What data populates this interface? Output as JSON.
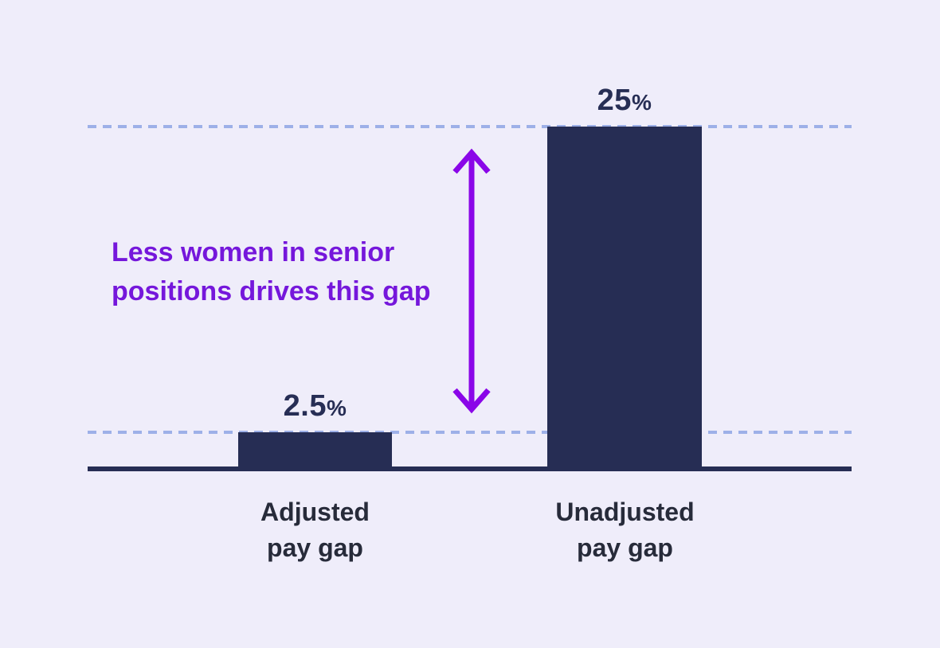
{
  "chart_data": {
    "type": "bar",
    "title": "",
    "xlabel": "",
    "ylabel": "",
    "categories": [
      "Adjusted pay gap",
      "Unadjusted pay gap"
    ],
    "values": [
      2.5,
      25
    ],
    "value_labels": [
      {
        "number": "2.5",
        "suffix": "%"
      },
      {
        "number": "25",
        "suffix": "%"
      }
    ],
    "ylim": [
      0,
      25
    ],
    "guide_lines": [
      2.5,
      25
    ],
    "grid": "dashed horizontal guide line at each bar's value, drawn behind bars",
    "legend_position": "none",
    "annotation": {
      "line1": "Less women in senior",
      "line2": "positions drives this gap"
    },
    "colors": {
      "background": "#EFEDFA",
      "bar": "#262D54",
      "value_label": "#272E55",
      "category_label": "#272B3A",
      "guide_line": "#9DB0E8",
      "baseline": "#262D54",
      "annotation_text": "#7517DB",
      "arrow": "#8A06E8"
    }
  }
}
